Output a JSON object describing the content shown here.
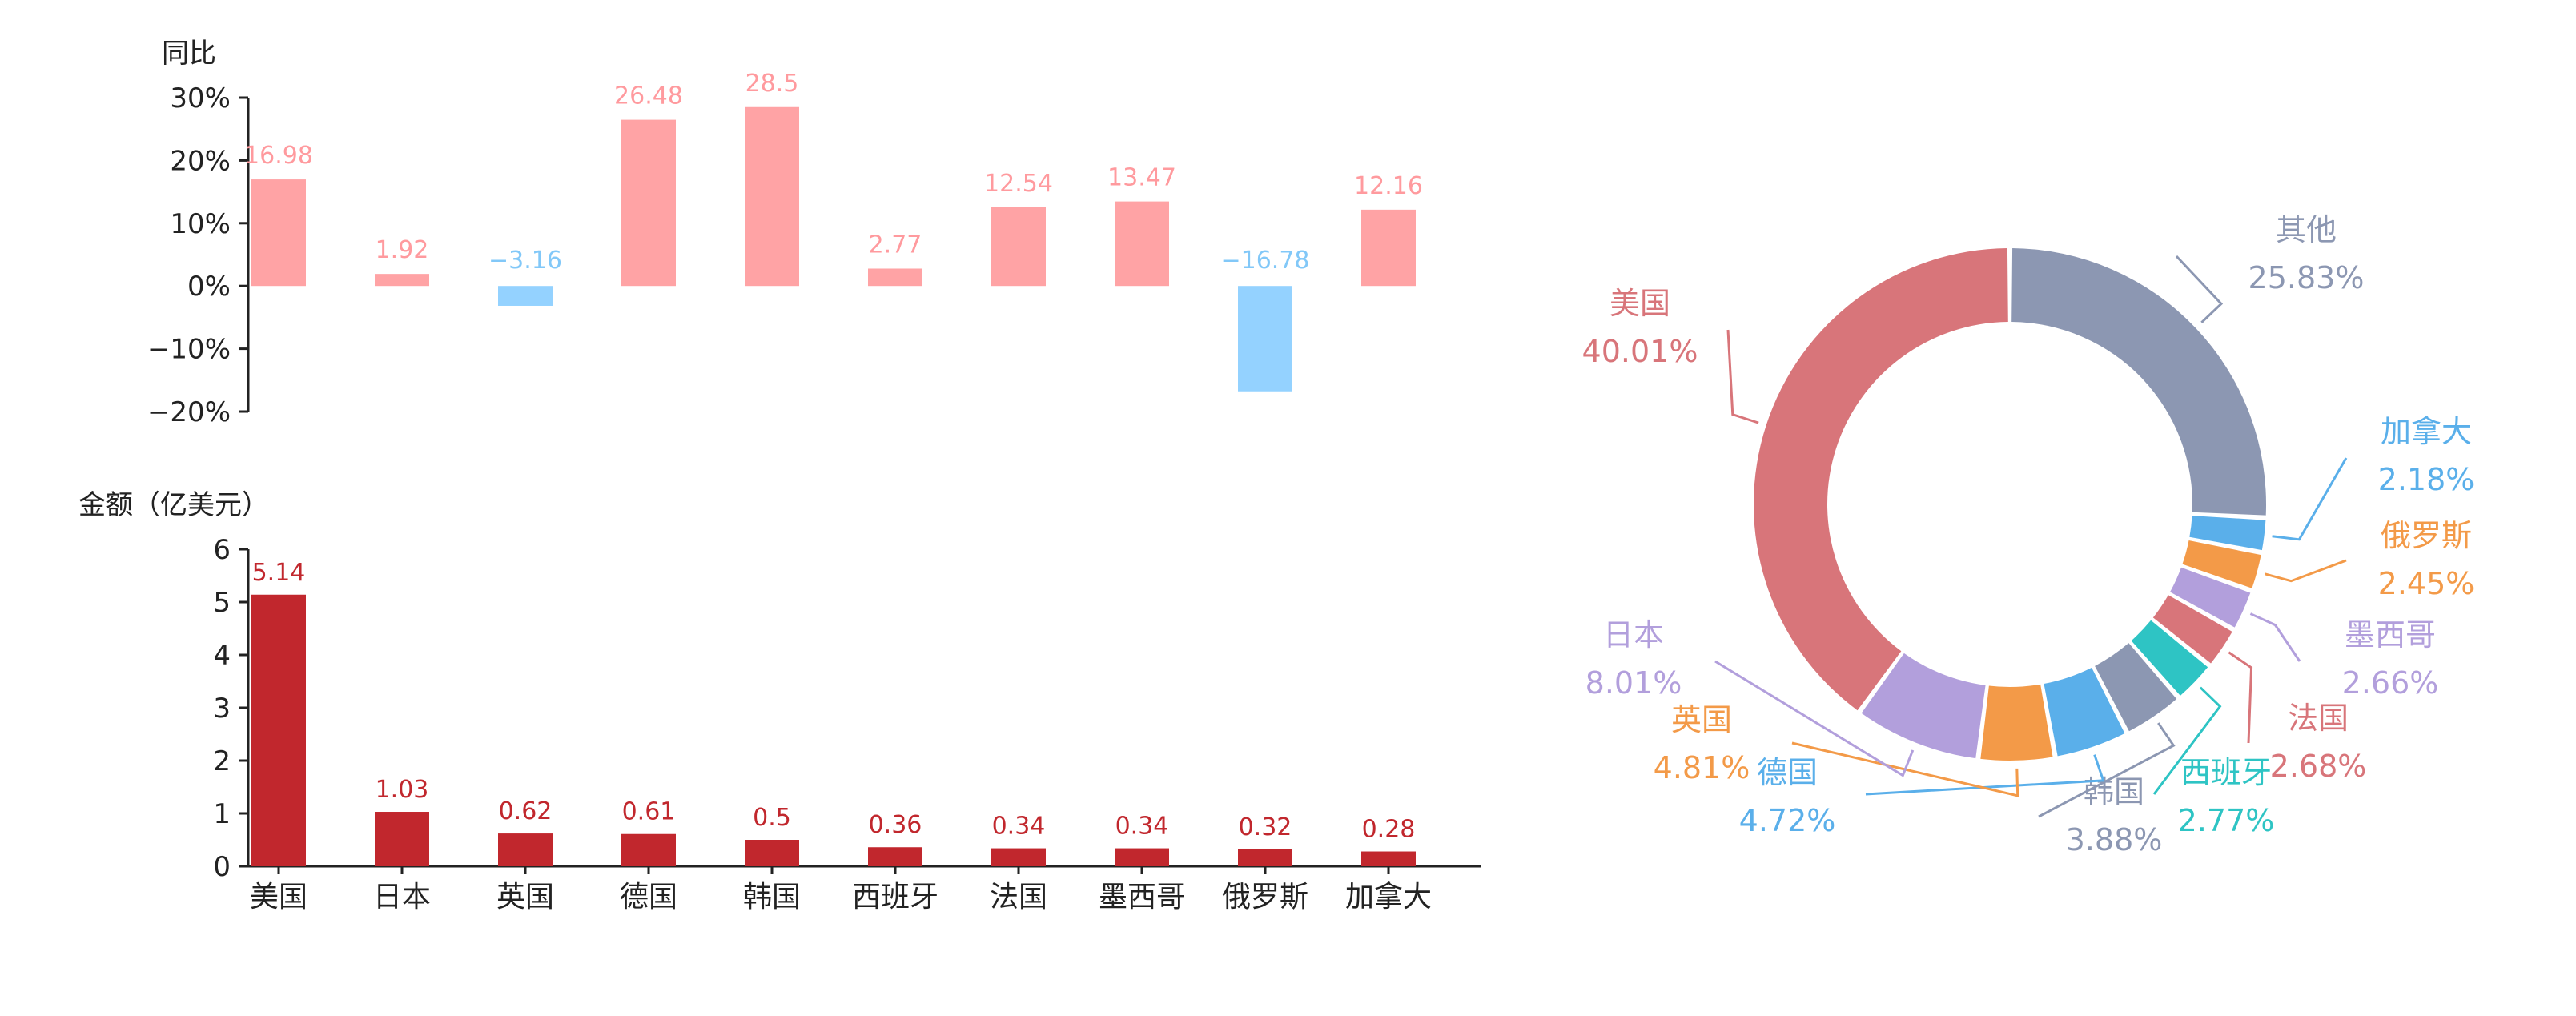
{
  "chart_data": [
    {
      "type": "bar",
      "ylabel": "同比",
      "categories": [
        "美国",
        "日本",
        "英国",
        "德国",
        "韩国",
        "西班牙",
        "法国",
        "墨西哥",
        "俄罗斯",
        "加拿大"
      ],
      "values": [
        16.98,
        1.92,
        -3.16,
        26.48,
        28.5,
        2.77,
        12.54,
        13.47,
        -16.78,
        12.16
      ],
      "value_labels": [
        "16.98",
        "1.92",
        "−3.16",
        "26.48",
        "28.5",
        "2.77",
        "12.54",
        "13.47",
        "−16.78",
        "12.16"
      ],
      "yticks": [
        "30%",
        "20%",
        "10%",
        "0%",
        "−10%",
        "−20%"
      ],
      "ylim": [
        -20,
        30
      ],
      "grid": false,
      "colors": {
        "positive": "#FFA3A5",
        "negative": "#94D2FF",
        "positive_label": "#FF9A9E",
        "negative_label": "#82C8F8"
      }
    },
    {
      "type": "bar",
      "ylabel": "金额（亿美元）",
      "categories": [
        "美国",
        "日本",
        "英国",
        "德国",
        "韩国",
        "西班牙",
        "法国",
        "墨西哥",
        "俄罗斯",
        "加拿大"
      ],
      "values": [
        5.14,
        1.03,
        0.62,
        0.61,
        0.5,
        0.36,
        0.34,
        0.34,
        0.32,
        0.28
      ],
      "value_labels": [
        "5.14",
        "1.03",
        "0.62",
        "0.61",
        "0.5",
        "0.36",
        "0.34",
        "0.34",
        "0.32",
        "0.28"
      ],
      "yticks": [
        "6",
        "5",
        "4",
        "3",
        "2",
        "1",
        "0"
      ],
      "ylim": [
        0,
        6
      ],
      "grid": false,
      "colors": {
        "bar": "#C1272D",
        "label": "#C1272D"
      }
    },
    {
      "type": "pie",
      "donut": true,
      "slices": [
        {
          "name": "其他",
          "pct": "25.83%",
          "value": 25.83,
          "color": "#8C97B2"
        },
        {
          "name": "加拿大",
          "pct": "2.18%",
          "value": 2.18,
          "color": "#5AAFEA"
        },
        {
          "name": "俄罗斯",
          "pct": "2.45%",
          "value": 2.45,
          "color": "#F39A48"
        },
        {
          "name": "墨西哥",
          "pct": "2.66%",
          "value": 2.66,
          "color": "#B29FDC"
        },
        {
          "name": "法国",
          "pct": "2.68%",
          "value": 2.68,
          "color": "#D8757A"
        },
        {
          "name": "西班牙",
          "pct": "2.77%",
          "value": 2.77,
          "color": "#2EC4C4"
        },
        {
          "name": "韩国",
          "pct": "3.88%",
          "value": 3.88,
          "color": "#8C97B2"
        },
        {
          "name": "德国",
          "pct": "4.72%",
          "value": 4.72,
          "color": "#5AAFEA"
        },
        {
          "name": "英国",
          "pct": "4.81%",
          "value": 4.81,
          "color": "#F39A48"
        },
        {
          "name": "日本",
          "pct": "8.01%",
          "value": 8.01,
          "color": "#B29FDC"
        },
        {
          "name": "美国",
          "pct": "40.01%",
          "value": 40.01,
          "color": "#D8757A"
        }
      ]
    }
  ],
  "colors": {
    "axis": "#222222",
    "text": "#222222"
  }
}
